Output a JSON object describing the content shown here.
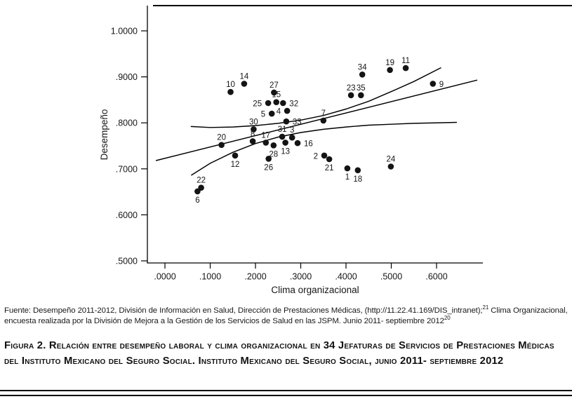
{
  "chart": {
    "ylabel": "Desempeño",
    "xlabel": "Clima organizacional",
    "y_tick_labels": [
      "1.0000",
      ".9000",
      ".8000",
      ".7000",
      ".6000",
      ".5000"
    ],
    "x_tick_labels": [
      ".0000",
      ".1000",
      ".2000",
      ".3000",
      ".4000",
      ".5000",
      ".6000"
    ]
  },
  "chart_data": {
    "type": "scatter",
    "title": "",
    "xlabel": "Clima organizacional",
    "ylabel": "Desempeño",
    "xlim": [
      -0.04,
      0.7
    ],
    "ylim": [
      0.5,
      1.05
    ],
    "x_ticks": [
      0.0,
      0.1,
      0.2,
      0.3,
      0.4,
      0.5,
      0.6
    ],
    "y_ticks": [
      1.0,
      0.9,
      0.8,
      0.7,
      0.6,
      0.5
    ],
    "grid": false,
    "legend": "none",
    "points": [
      {
        "label": "6",
        "x": 0.072,
        "y": 0.651,
        "label_pos": "below"
      },
      {
        "label": "22",
        "x": 0.08,
        "y": 0.659,
        "label_pos": "above"
      },
      {
        "label": "20",
        "x": 0.125,
        "y": 0.752,
        "label_pos": "above"
      },
      {
        "label": "12",
        "x": 0.155,
        "y": 0.729,
        "label_pos": "below"
      },
      {
        "label": "10",
        "x": 0.145,
        "y": 0.867,
        "label_pos": "above"
      },
      {
        "label": "14",
        "x": 0.175,
        "y": 0.885,
        "label_pos": "above"
      },
      {
        "label": "30",
        "x": 0.196,
        "y": 0.786,
        "label_pos": "above"
      },
      {
        "label": "8",
        "x": 0.194,
        "y": 0.76,
        "label_pos": "above"
      },
      {
        "label": "17",
        "x": 0.223,
        "y": 0.757,
        "label_pos": "above"
      },
      {
        "label": "28",
        "x": 0.24,
        "y": 0.751,
        "label_pos": "below"
      },
      {
        "label": "26",
        "x": 0.229,
        "y": 0.722,
        "label_pos": "below"
      },
      {
        "label": "25",
        "x": 0.228,
        "y": 0.843,
        "label_pos": "left"
      },
      {
        "label": "15",
        "x": 0.246,
        "y": 0.845,
        "label_pos": "above"
      },
      {
        "label": "27",
        "x": 0.241,
        "y": 0.866,
        "label_pos": "above"
      },
      {
        "label": "5",
        "x": 0.236,
        "y": 0.82,
        "label_pos": "left"
      },
      {
        "label": "32",
        "x": 0.261,
        "y": 0.843,
        "label_pos": "right"
      },
      {
        "label": "4",
        "x": 0.27,
        "y": 0.826,
        "label_pos": "left"
      },
      {
        "label": "33",
        "x": 0.268,
        "y": 0.803,
        "label_pos": "right"
      },
      {
        "label": "31",
        "x": 0.259,
        "y": 0.77,
        "label_pos": "above"
      },
      {
        "label": "13",
        "x": 0.266,
        "y": 0.757,
        "label_pos": "below"
      },
      {
        "label": "3",
        "x": 0.281,
        "y": 0.768,
        "label_pos": "above"
      },
      {
        "label": "16",
        "x": 0.293,
        "y": 0.756,
        "label_pos": "right"
      },
      {
        "label": "7",
        "x": 0.35,
        "y": 0.805,
        "label_pos": "above"
      },
      {
        "label": "2",
        "x": 0.352,
        "y": 0.729,
        "label_pos": "left"
      },
      {
        "label": "21",
        "x": 0.363,
        "y": 0.721,
        "label_pos": "below"
      },
      {
        "label": "1",
        "x": 0.403,
        "y": 0.701,
        "label_pos": "below"
      },
      {
        "label": "18",
        "x": 0.426,
        "y": 0.697,
        "label_pos": "below"
      },
      {
        "label": "24",
        "x": 0.499,
        "y": 0.705,
        "label_pos": "above"
      },
      {
        "label": "23",
        "x": 0.411,
        "y": 0.86,
        "label_pos": "above"
      },
      {
        "label": "35",
        "x": 0.433,
        "y": 0.86,
        "label_pos": "above"
      },
      {
        "label": "34",
        "x": 0.436,
        "y": 0.905,
        "label_pos": "above"
      },
      {
        "label": "19",
        "x": 0.497,
        "y": 0.915,
        "label_pos": "above"
      },
      {
        "label": "11",
        "x": 0.532,
        "y": 0.919,
        "label_pos": "above"
      },
      {
        "label": "9",
        "x": 0.592,
        "y": 0.885,
        "label_pos": "right"
      }
    ],
    "regression_line": [
      [
        -0.02,
        0.718
      ],
      [
        0.69,
        0.893
      ]
    ],
    "upper_confidence_band": [
      [
        0.057,
        0.792
      ],
      [
        0.1,
        0.79
      ],
      [
        0.15,
        0.791
      ],
      [
        0.2,
        0.794
      ],
      [
        0.25,
        0.799
      ],
      [
        0.3,
        0.806
      ],
      [
        0.35,
        0.816
      ],
      [
        0.4,
        0.83
      ],
      [
        0.45,
        0.847
      ],
      [
        0.5,
        0.868
      ],
      [
        0.55,
        0.89
      ],
      [
        0.61,
        0.92
      ]
    ],
    "lower_confidence_band": [
      [
        0.058,
        0.686
      ],
      [
        0.1,
        0.712
      ],
      [
        0.15,
        0.736
      ],
      [
        0.2,
        0.755
      ],
      [
        0.25,
        0.769
      ],
      [
        0.3,
        0.779
      ],
      [
        0.35,
        0.786
      ],
      [
        0.4,
        0.791
      ],
      [
        0.45,
        0.795
      ],
      [
        0.5,
        0.797
      ],
      [
        0.55,
        0.799
      ],
      [
        0.645,
        0.801
      ]
    ],
    "point_color": "#141414",
    "line_color": "#000000"
  },
  "source_note": {
    "text1": "Fuente: Desempeño 2011-2012, División de Información en Salud, Dirección de Prestaciones Médicas, (http://11.22.41.169/DIS_intranet);",
    "sup1": "21",
    "text2": " Clima Organizacional, encuesta realizada por la División de Mejora a la Gestión de los Servicios de Salud en las JSPM. Junio 2011- septiembre 2012",
    "sup2": "20"
  },
  "caption": {
    "text": "Figura 2. Relación entre desempeño laboral y clima organizacional en 34 Jefaturas de Servicios de Prestaciones Médicas del Instituto Mexicano del Seguro Social. Instituto Mexicano del Seguro Social, junio 2011- septiembre 2012"
  }
}
